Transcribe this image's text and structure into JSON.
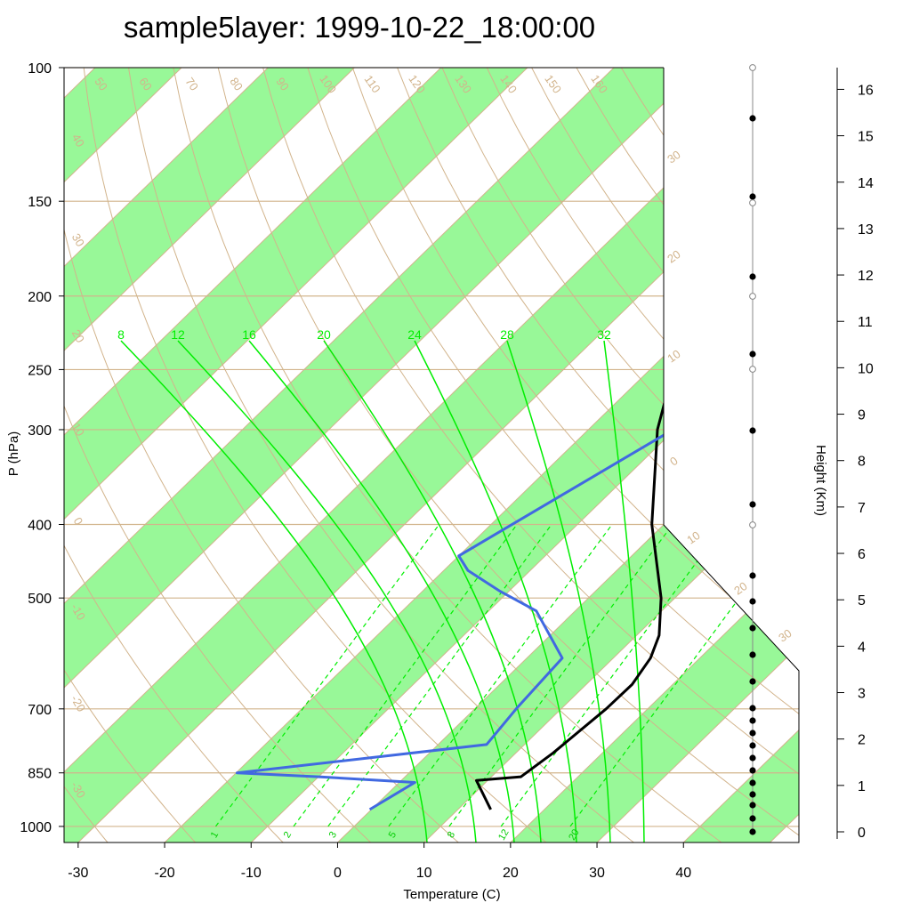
{
  "title": "sample5layer: 1999-10-22_18:00:00",
  "colors": {
    "isobar": "#d2b48c",
    "band": "#98f898",
    "moist_adiabat": "#00ee00",
    "temperature": "#000000",
    "dewpoint": "#4169e1"
  },
  "chart_data": {
    "type": "line",
    "subtype": "skew-T log-p",
    "title": "sample5layer: 1999-10-22_18:00:00",
    "xlabel": "Temperature (C)",
    "ylabel": "P (hPa)",
    "y2label": "Height (Km)",
    "xlim": [
      -33,
      52
    ],
    "ylim": [
      1050,
      100
    ],
    "y_scale": "log",
    "x_ticks": [
      -30,
      -20,
      -10,
      0,
      10,
      20,
      30,
      40
    ],
    "y_ticks": [
      100,
      150,
      200,
      250,
      300,
      400,
      500,
      700,
      850,
      1000
    ],
    "height_ticks": [
      0,
      1,
      2,
      3,
      4,
      5,
      6,
      7,
      8,
      9,
      10,
      11,
      12,
      13,
      14,
      15,
      16
    ],
    "series": [
      {
        "name": "Temperature",
        "pressure": [
          950,
          870,
          860,
          800,
          700,
          650,
          600,
          560,
          500,
          400,
          300,
          250,
          200,
          190
        ],
        "values": [
          13.8,
          8.7,
          13.4,
          14.3,
          15.2,
          15.3,
          14.3,
          12.6,
          8.4,
          -1.4,
          -12.0,
          -17.3,
          -23.0,
          -24.1
        ]
      },
      {
        "name": "Dewpoint",
        "pressure": [
          950,
          875,
          860,
          850,
          780,
          700,
          600,
          520,
          490,
          460,
          440,
          300,
          200,
          190
        ],
        "values": [
          -0.2,
          1.8,
          -10.0,
          -19.9,
          5.6,
          4.8,
          4.1,
          -4.5,
          -11.0,
          -17.2,
          -20.0,
          -10.2,
          -1.0,
          -0.9
        ]
      }
    ],
    "isobar_labels": [
      "100",
      "150",
      "200",
      "250",
      "300",
      "400",
      "500",
      "700",
      "850",
      "1000"
    ],
    "dry_adiabat_labels": [
      "50",
      "60",
      "70",
      "80",
      "90",
      "100",
      "110",
      "120",
      "130",
      "140",
      "150",
      "160"
    ],
    "isotherm_labels": [
      "30",
      "20",
      "10",
      "0",
      "-10",
      "-20",
      "-30",
      "40",
      "30",
      "20",
      "10",
      "0",
      "-10",
      "-20",
      "-30",
      "-40"
    ],
    "moist_adiabat_labels": [
      "8",
      "12",
      "16",
      "20",
      "24",
      "28",
      "32"
    ],
    "mixing_ratio_labels": [
      "1",
      "2",
      "3",
      "5",
      "8",
      "12",
      "20"
    ],
    "grid": true
  }
}
